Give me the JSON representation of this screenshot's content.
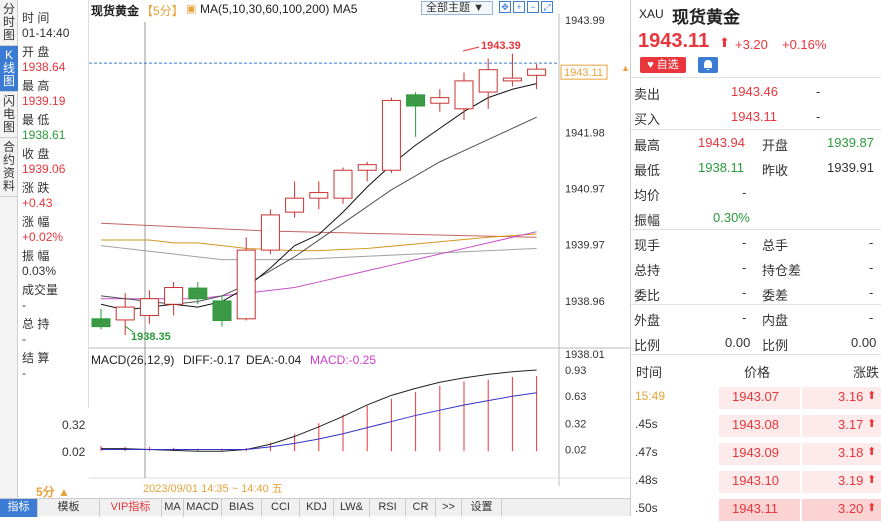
{
  "vtabs": [
    "分时图",
    "K线图",
    "闪电图",
    "合约资料"
  ],
  "info": {
    "time_label": "时 间",
    "time_value": "01-14:40",
    "open_label": "开 盘",
    "open_value": "1938.64",
    "high_label": "最 高",
    "high_value": "1939.19",
    "low_label": "最 低",
    "low_value": "1938.61",
    "close_label": "收 盘",
    "close_value": "1939.06",
    "change_label": "涨 跌",
    "change_value": "+0.43",
    "pct_label": "涨 幅",
    "pct_value": "+0.02%",
    "amp_label": "振 幅",
    "amp_value": "0.03%",
    "volume_label": "成交量",
    "volume_value": "-",
    "hold_label": "总 持",
    "hold_value": "-",
    "settle_label": "结 算",
    "settle_value": "-"
  },
  "header": {
    "title": "现货黄金",
    "period": "【5分】",
    "ma_label": "MA(5,10,30,60,100,200) MA5",
    "theme_label": "全部主题",
    "macd_label": "MACD(26,12,9)",
    "diff": "DIFF:-0.17",
    "dea": "DEA:-0.04",
    "macd": "MACD:-0.25"
  },
  "chart_data": {
    "type": "candlestick",
    "price_axis_labels": [
      "1943.99",
      "1941.98",
      "1940.97",
      "1939.97",
      "1938.96",
      "1938.01"
    ],
    "macd_axis_labels": [
      "0.93",
      "0.63",
      "0.32",
      "0.02"
    ],
    "macd_left_labels": [
      "0.32",
      "0.02"
    ],
    "current_price_tag": "1943.11",
    "max_label": "1943.39",
    "min_label": "1938.35",
    "date_label": "2023/09/01 14:35 ~ 14:40 五",
    "period_selector": "5分 ▲",
    "ylim": [
      1938.01,
      1943.99
    ],
    "candles": [
      {
        "o": 1938.64,
        "h": 1938.82,
        "l": 1938.45,
        "c": 1938.5
      },
      {
        "o": 1938.62,
        "h": 1939.1,
        "l": 1938.35,
        "c": 1938.85
      },
      {
        "o": 1938.7,
        "h": 1939.15,
        "l": 1938.55,
        "c": 1939.0
      },
      {
        "o": 1938.9,
        "h": 1939.3,
        "l": 1938.7,
        "c": 1939.2
      },
      {
        "o": 1939.19,
        "h": 1939.3,
        "l": 1938.9,
        "c": 1939.0
      },
      {
        "o": 1938.96,
        "h": 1939.06,
        "l": 1938.5,
        "c": 1938.61
      },
      {
        "o": 1938.64,
        "h": 1940.1,
        "l": 1938.61,
        "c": 1939.87
      },
      {
        "o": 1939.87,
        "h": 1940.6,
        "l": 1939.8,
        "c": 1940.5
      },
      {
        "o": 1940.55,
        "h": 1941.1,
        "l": 1940.45,
        "c": 1940.8
      },
      {
        "o": 1940.8,
        "h": 1941.1,
        "l": 1940.6,
        "c": 1940.9
      },
      {
        "o": 1940.8,
        "h": 1941.35,
        "l": 1940.7,
        "c": 1941.3
      },
      {
        "o": 1941.3,
        "h": 1941.45,
        "l": 1941.1,
        "c": 1941.4
      },
      {
        "o": 1941.3,
        "h": 1942.6,
        "l": 1941.25,
        "c": 1942.55
      },
      {
        "o": 1942.65,
        "h": 1942.7,
        "l": 1941.9,
        "c": 1942.45
      },
      {
        "o": 1942.5,
        "h": 1942.75,
        "l": 1942.35,
        "c": 1942.6
      },
      {
        "o": 1942.4,
        "h": 1943.05,
        "l": 1942.2,
        "c": 1942.9
      },
      {
        "o": 1942.7,
        "h": 1943.3,
        "l": 1942.4,
        "c": 1943.1
      },
      {
        "o": 1942.9,
        "h": 1943.39,
        "l": 1942.8,
        "c": 1942.95
      },
      {
        "o": 1943.0,
        "h": 1943.2,
        "l": 1942.75,
        "c": 1943.11
      }
    ],
    "ma5": [
      1938.9,
      1938.8,
      1938.85,
      1938.9,
      1938.85,
      1938.95,
      1939.2,
      1939.55,
      1939.95,
      1940.15,
      1940.55,
      1941.0,
      1941.4,
      1941.75,
      1942.05,
      1942.35,
      1942.6,
      1942.75,
      1942.85
    ],
    "ma10": [
      1939.05,
      1939.0,
      1938.95,
      1938.9,
      1938.95,
      1939.05,
      1939.25,
      1939.5,
      1939.75,
      1940.05,
      1940.35,
      1940.65,
      1940.95,
      1941.2,
      1941.45,
      1941.65,
      1941.85,
      1942.05,
      1942.25
    ],
    "ma30": [
      1939.0,
      1939.0,
      1939.0,
      1939.0,
      1939.0,
      1939.05,
      1939.1,
      1939.15,
      1939.2,
      1939.3,
      1939.4,
      1939.5,
      1939.6,
      1939.7,
      1939.8,
      1939.9,
      1940.0,
      1940.1,
      1940.2
    ],
    "ma60": [
      1940.05,
      1940.05,
      1940.05,
      1940.0,
      1940.0,
      1939.95,
      1939.9,
      1939.88,
      1939.86,
      1939.86,
      1939.88,
      1939.9,
      1939.94,
      1939.98,
      1940.02,
      1940.06,
      1940.1,
      1940.13,
      1940.16
    ],
    "ma100": [
      1939.95,
      1939.9,
      1939.85,
      1939.8,
      1939.75,
      1939.7,
      1939.7,
      1939.7,
      1939.7,
      1939.72,
      1939.74,
      1939.76,
      1939.78,
      1939.8,
      1939.82,
      1939.84,
      1939.86,
      1939.88,
      1939.9
    ],
    "ma200": [
      1940.35,
      1940.33,
      1940.31,
      1940.29,
      1940.27,
      1940.25,
      1940.23,
      1940.21,
      1940.2,
      1940.19,
      1940.18,
      1940.17,
      1940.16,
      1940.15,
      1940.14,
      1940.13,
      1940.12,
      1940.11,
      1940.1
    ],
    "macd_ylim": [
      -0.1,
      0.93
    ],
    "macd_hist": [
      0.06,
      0.05,
      0.05,
      0.04,
      0.03,
      0.03,
      0.04,
      0.1,
      0.2,
      0.32,
      0.42,
      0.52,
      0.6,
      0.68,
      0.75,
      0.8,
      0.82,
      0.85,
      0.86
    ],
    "dif": [
      0.03,
      0.03,
      0.02,
      0.01,
      0.0,
      0.0,
      0.02,
      0.08,
      0.17,
      0.28,
      0.4,
      0.53,
      0.64,
      0.72,
      0.79,
      0.84,
      0.88,
      0.91,
      0.93
    ],
    "dea": [
      0.02,
      0.02,
      0.02,
      0.02,
      0.02,
      0.02,
      0.02,
      0.05,
      0.09,
      0.14,
      0.2,
      0.27,
      0.34,
      0.41,
      0.47,
      0.53,
      0.58,
      0.63,
      0.67
    ]
  },
  "bottom_tabs": [
    "指标",
    "模板",
    "VIP指标",
    "MA",
    "MACD",
    "BIAS",
    "CCI",
    "KDJ",
    "LW&",
    "RSI",
    "CR",
    ">>",
    "设置"
  ],
  "right": {
    "code": "XAU",
    "name": "现货黄金",
    "price": "1943.11",
    "arrow": "⬆",
    "change": "+3.20",
    "pct": "+0.16%",
    "fav_label": "♥ 自选",
    "bid_label": "卖出",
    "bid_value": "1943.46",
    "bid_vol": "-",
    "ask_label": "买入",
    "ask_value": "1943.11",
    "ask_vol": "-",
    "high_label": "最高",
    "high_value": "1943.94",
    "open_label": "开盘",
    "open_value": "1939.87",
    "low_label": "最低",
    "low_value": "1938.11",
    "prev_label": "昨收",
    "prev_value": "1939.91",
    "avg_label": "均价",
    "avg_value": "-",
    "amp_label": "振幅",
    "amp_value": "0.30%",
    "vol_label": "现手",
    "vol_value": "-",
    "totalvol_label": "总手",
    "totalvol_value": "-",
    "hold_label": "总持",
    "hold_value": "-",
    "holdchg_label": "持仓差",
    "holdchg_value": "-",
    "wb_label": "委比",
    "wb_value": "-",
    "wc_label": "委差",
    "wc_value": "-",
    "outer_label": "外盘",
    "outer_value": "-",
    "inner_label": "内盘",
    "inner_value": "-",
    "ratio_label": "比例",
    "ratio_value": "0.00",
    "ratio2_label": "比例",
    "ratio2_value": "0.00",
    "ticks_header": {
      "time": "时间",
      "price": "价格",
      "change": "涨跌"
    },
    "ticks": [
      {
        "time": "15:49",
        "price": "1943.07",
        "change": "3.16"
      },
      {
        "time": ".45s",
        "price": "1943.08",
        "change": "3.17"
      },
      {
        "time": ".47s",
        "price": "1943.09",
        "change": "3.18"
      },
      {
        "time": ".48s",
        "price": "1943.10",
        "change": "3.19"
      },
      {
        "time": ".50s",
        "price": "1943.11",
        "change": "3.20"
      }
    ]
  }
}
